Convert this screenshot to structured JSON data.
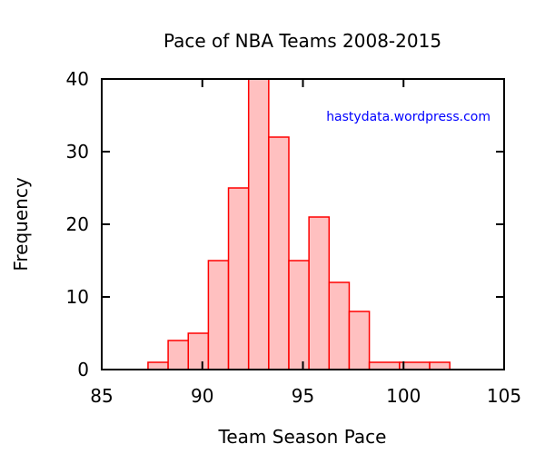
{
  "chart_data": {
    "type": "bar",
    "title": "Pace of NBA Teams 2008-2015",
    "xlabel": "Team Season Pace",
    "ylabel": "Frequency",
    "xlim": [
      85,
      105
    ],
    "ylim": [
      0,
      40
    ],
    "xticks": [
      85,
      90,
      95,
      100,
      105
    ],
    "yticks": [
      0,
      10,
      20,
      30,
      40
    ],
    "grid": false,
    "watermark": "hastydata.wordpress.com",
    "bins": [
      {
        "start": 87.3,
        "end": 88.3,
        "count": 1
      },
      {
        "start": 88.3,
        "end": 89.3,
        "count": 4
      },
      {
        "start": 89.3,
        "end": 90.3,
        "count": 5
      },
      {
        "start": 90.3,
        "end": 91.3,
        "count": 15
      },
      {
        "start": 91.3,
        "end": 92.3,
        "count": 25
      },
      {
        "start": 92.3,
        "end": 93.3,
        "count": 40
      },
      {
        "start": 93.3,
        "end": 94.3,
        "count": 32
      },
      {
        "start": 94.3,
        "end": 95.3,
        "count": 15
      },
      {
        "start": 95.3,
        "end": 96.3,
        "count": 21
      },
      {
        "start": 96.3,
        "end": 97.3,
        "count": 12
      },
      {
        "start": 97.3,
        "end": 98.3,
        "count": 8
      },
      {
        "start": 98.3,
        "end": 99.8,
        "count": 1
      },
      {
        "start": 99.8,
        "end": 101.3,
        "count": 1
      },
      {
        "start": 101.3,
        "end": 102.3,
        "count": 1
      }
    ],
    "colors": {
      "bar_fill": "#ffc0c0",
      "bar_stroke": "#ff0000",
      "watermark": "#0000ff",
      "axis": "#000000"
    }
  }
}
